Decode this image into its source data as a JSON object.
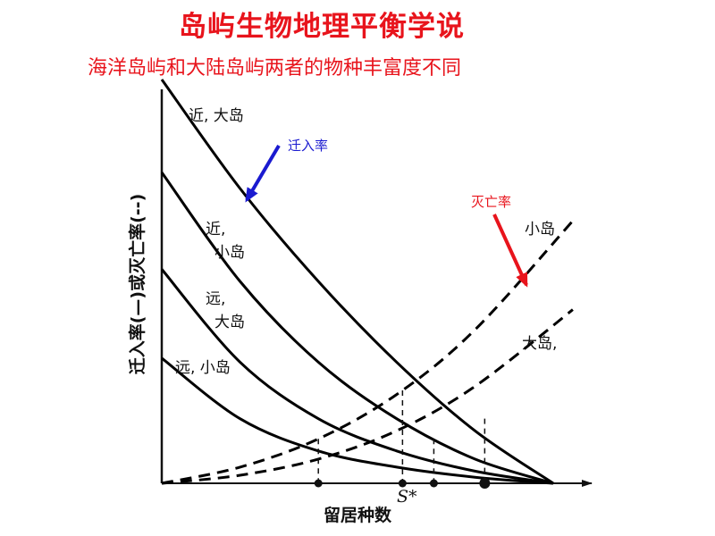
{
  "title": "岛屿生物地理平衡学说",
  "subtitle": "海洋岛屿和大陆岛屿两者的物种丰富度不同",
  "chart_data": {
    "type": "line",
    "xlabel": "留居种数",
    "ylabel": "迁入率(—)或灭亡率(--)",
    "x_tick_labels": [
      "S*"
    ],
    "xlim": [
      0,
      1
    ],
    "ylim": [
      0,
      1
    ],
    "grid": false,
    "series": [
      {
        "name": "近, 大岛",
        "style": "solid",
        "x": [
          0,
          0.2,
          0.4,
          0.6,
          0.8,
          1.0
        ],
        "y": [
          1.0,
          0.73,
          0.5,
          0.3,
          0.13,
          0.0
        ]
      },
      {
        "name": "近, 小岛",
        "style": "solid",
        "x": [
          0,
          0.2,
          0.4,
          0.6,
          0.8,
          1.0
        ],
        "y": [
          0.77,
          0.5,
          0.3,
          0.16,
          0.06,
          0.0
        ]
      },
      {
        "name": "远, 大岛",
        "style": "solid",
        "x": [
          0,
          0.2,
          0.4,
          0.6,
          0.8,
          1.0
        ],
        "y": [
          0.53,
          0.3,
          0.16,
          0.08,
          0.03,
          0.0
        ]
      },
      {
        "name": "远, 小岛",
        "style": "solid",
        "x": [
          0,
          0.2,
          0.4,
          0.6,
          0.8,
          1.0
        ],
        "y": [
          0.31,
          0.16,
          0.08,
          0.04,
          0.015,
          0.0
        ]
      },
      {
        "name": "小岛",
        "style": "dashed",
        "x": [
          0,
          0.2,
          0.4,
          0.6,
          0.8,
          1.05
        ],
        "y": [
          0.0,
          0.04,
          0.11,
          0.22,
          0.38,
          0.65
        ]
      },
      {
        "name": "大岛",
        "style": "dashed",
        "x": [
          0,
          0.2,
          0.4,
          0.6,
          0.8,
          1.05
        ],
        "y": [
          0.0,
          0.02,
          0.06,
          0.13,
          0.24,
          0.43
        ]
      }
    ],
    "equilibria": [
      {
        "x": 0.4,
        "y": 0.11
      },
      {
        "x": 0.615,
        "y": 0.23
      },
      {
        "x": 0.695,
        "y": 0.11
      },
      {
        "x": 0.825,
        "y": 0.16
      }
    ],
    "annotations": [
      {
        "text": "近, 大岛",
        "target_series": 0
      },
      {
        "text": "近,",
        "target_series": 1
      },
      {
        "text": "小岛",
        "target_series": 1
      },
      {
        "text": "远,",
        "target_series": 2
      },
      {
        "text": "大岛",
        "target_series": 2
      },
      {
        "text": "远, 小岛",
        "target_series": 3
      },
      {
        "text": "小岛",
        "target_series": 4
      },
      {
        "text": "大岛,",
        "target_series": 5
      },
      {
        "text": "迁入率",
        "color": "#1a1ad0"
      },
      {
        "text": "灭亡率",
        "color": "#e8141c"
      }
    ],
    "colors": {
      "curves": "#000000",
      "immigration_arrow": "#1a1ad0",
      "extinction_arrow": "#e8141c",
      "title": "#e8141c"
    }
  }
}
